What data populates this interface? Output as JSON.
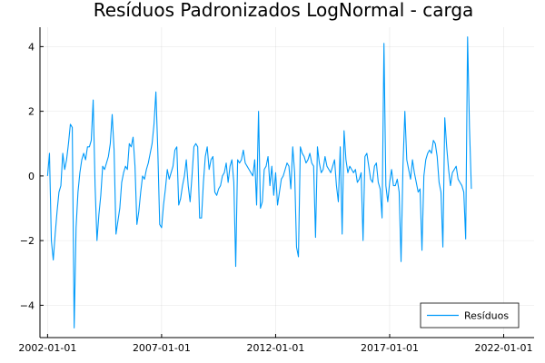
{
  "chart_data": {
    "type": "line",
    "title": "Resíduos Padronizados LogNormal - carga",
    "xlabel": "",
    "ylabel": "",
    "xlim": [
      "2001-09-01",
      "2023-05-01"
    ],
    "ylim": [
      -5.0,
      4.6
    ],
    "x_ticks": [
      "2002-01-01",
      "2007-01-01",
      "2012-01-01",
      "2017-01-01",
      "2022-01-01"
    ],
    "x_tick_labels": [
      "2002-01-01",
      "2007-01-01",
      "2012-01-01",
      "2017-01-01",
      "2022-01-01"
    ],
    "y_ticks": [
      -4,
      -2,
      0,
      2,
      4
    ],
    "y_tick_labels": [
      "−4",
      "−2",
      "0",
      "2",
      "4"
    ],
    "grid": true,
    "legend": "bottom-right",
    "colors": {
      "series": "#009AFA",
      "axis": "#000000"
    },
    "series": [
      {
        "name": "Resíduos",
        "x_start": "2002-01-01",
        "x_step": "1 month",
        "values": [
          0.0,
          0.7,
          -2.0,
          -2.6,
          -1.8,
          -1.1,
          -0.5,
          -0.3,
          0.7,
          0.2,
          0.5,
          1.0,
          1.6,
          1.5,
          -4.7,
          -1.6,
          -0.5,
          0.1,
          0.5,
          0.7,
          0.5,
          0.9,
          0.9,
          1.1,
          2.35,
          -0.3,
          -2.0,
          -1.2,
          -0.6,
          0.3,
          0.2,
          0.4,
          0.6,
          1.0,
          1.9,
          0.8,
          -1.8,
          -1.4,
          -1.0,
          -0.2,
          0.1,
          0.3,
          0.2,
          1.0,
          0.9,
          1.2,
          0.3,
          -1.5,
          -1.1,
          -0.5,
          0.0,
          -0.1,
          0.2,
          0.4,
          0.7,
          1.0,
          1.6,
          2.6,
          0.8,
          -1.5,
          -1.6,
          -0.9,
          -0.4,
          0.2,
          -0.1,
          0.1,
          0.3,
          0.8,
          0.9,
          -0.9,
          -0.7,
          -0.3,
          0.0,
          0.5,
          -0.3,
          -0.8,
          0.0,
          0.9,
          1.0,
          0.9,
          -1.3,
          -1.3,
          -0.2,
          0.6,
          0.9,
          0.2,
          0.5,
          0.6,
          -0.5,
          -0.6,
          -0.4,
          -0.3,
          0.0,
          0.1,
          0.4,
          -0.2,
          0.3,
          0.5,
          -0.2,
          -2.8,
          0.5,
          0.4,
          0.5,
          0.8,
          0.4,
          0.3,
          0.2,
          0.1,
          0.0,
          0.5,
          -0.9,
          2.0,
          -1.0,
          -0.8,
          0.2,
          0.3,
          0.6,
          -0.3,
          0.3,
          -0.6,
          0.1,
          -0.9,
          -0.5,
          -0.1,
          0.0,
          0.2,
          0.4,
          0.3,
          -0.4,
          0.9,
          0.1,
          -2.2,
          -2.5,
          0.9,
          0.7,
          0.6,
          0.4,
          0.5,
          0.7,
          0.4,
          0.3,
          -1.9,
          0.9,
          0.4,
          0.1,
          0.2,
          0.6,
          0.3,
          0.2,
          0.1,
          0.3,
          0.5,
          -0.3,
          -0.8,
          0.9,
          -1.8,
          1.4,
          0.5,
          0.1,
          0.3,
          0.2,
          0.1,
          0.2,
          -0.2,
          -0.1,
          0.1,
          -2.0,
          0.6,
          0.7,
          0.3,
          -0.1,
          -0.2,
          0.3,
          0.4,
          -0.2,
          -0.4,
          -1.3,
          4.1,
          -0.3,
          -0.8,
          -0.2,
          0.2,
          -0.3,
          -0.3,
          -0.1,
          -0.5,
          -2.65,
          0.3,
          2.0,
          0.5,
          0.2,
          -0.1,
          0.5,
          0.1,
          -0.2,
          -0.5,
          -0.4,
          -2.3,
          0.0,
          0.5,
          0.7,
          0.8,
          0.7,
          1.1,
          1.0,
          0.6,
          -0.2,
          -0.5,
          -2.2,
          1.8,
          0.9,
          0.2,
          -0.3,
          0.1,
          0.2,
          0.3,
          -0.1,
          -0.2,
          -0.3,
          -0.5,
          -1.95,
          4.3,
          1.5,
          -0.4
        ]
      }
    ]
  }
}
